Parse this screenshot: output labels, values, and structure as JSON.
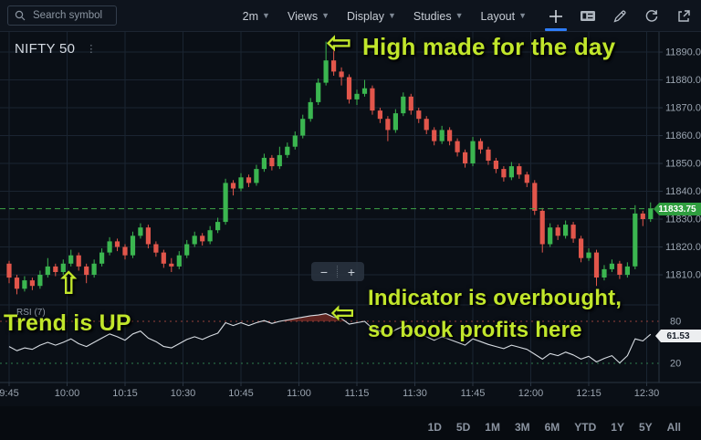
{
  "toolbar": {
    "search_placeholder": "Search symbol",
    "interval": "2m",
    "menus": [
      "Views",
      "Display",
      "Studies",
      "Layout"
    ]
  },
  "chart": {
    "symbol": "NIFTY 50",
    "more_glyph": "⋮",
    "current_price": "11833.75"
  },
  "rsi": {
    "label": "RSI (7)",
    "value": "61.53"
  },
  "annotations": {
    "high": "High made for the day",
    "trend": "Trend is UP",
    "overbought_line1": "Indicator is overbought,",
    "overbought_line2": "so book profits here",
    "arrow_left": "⇦",
    "arrow_up": "⇧"
  },
  "zoom_control": {
    "minus": "−",
    "plus": "+"
  },
  "ranges": [
    "1D",
    "5D",
    "1M",
    "3M",
    "6M",
    "YTD",
    "1Y",
    "5Y",
    "All"
  ],
  "chart_data": {
    "type": "candlestick",
    "symbol": "NIFTY 50",
    "interval": "2m",
    "session_start": "9:45",
    "session_end": "12:33",
    "current_price": 11833.75,
    "day_high": 11893.75,
    "day_low": 11803,
    "rsi_period": 7,
    "rsi_current": 61.53,
    "price_ticks": [
      11890,
      11880,
      11870,
      11860,
      11850,
      11840,
      11830,
      11820,
      11810
    ],
    "time_ticks": [
      "9:45",
      "10:00",
      "10:15",
      "10:30",
      "10:45",
      "11:00",
      "11:15",
      "11:30",
      "11:45",
      "12:00",
      "12:15",
      "12:30"
    ],
    "rsi_bands": [
      80,
      20
    ],
    "candles": [
      [
        11814,
        11815,
        11807,
        11809
      ],
      [
        11809,
        11810,
        11803,
        11805
      ],
      [
        11805,
        11809.5,
        11804,
        11808
      ],
      [
        11808,
        11809,
        11804.5,
        11806
      ],
      [
        11806,
        11811.5,
        11805,
        11810
      ],
      [
        11810,
        11816,
        11809,
        11813
      ],
      [
        11813,
        11814,
        11809.5,
        11811
      ],
      [
        11811,
        11815.5,
        11810,
        11814
      ],
      [
        11814,
        11819,
        11813,
        11817
      ],
      [
        11817,
        11818,
        11811.5,
        11813
      ],
      [
        11813,
        11814,
        11807,
        11810
      ],
      [
        11810,
        11815.5,
        11809,
        11814
      ],
      [
        11814,
        11819.5,
        11813,
        11818
      ],
      [
        11818,
        11823.5,
        11817,
        11822
      ],
      [
        11822,
        11823,
        11818.5,
        11820
      ],
      [
        11820,
        11821,
        11815.5,
        11817
      ],
      [
        11817,
        11825.5,
        11816,
        11824
      ],
      [
        11824,
        11828.5,
        11823,
        11827
      ],
      [
        11827,
        11828,
        11819.5,
        11821
      ],
      [
        11821,
        11822,
        11816.5,
        11818
      ],
      [
        11818,
        11819,
        11812.5,
        11814
      ],
      [
        11814,
        11816,
        11811,
        11813
      ],
      [
        11813,
        11818.5,
        11812,
        11817
      ],
      [
        11817,
        11822.5,
        11816,
        11821
      ],
      [
        11821,
        11825.5,
        11820,
        11824
      ],
      [
        11824,
        11825,
        11820.5,
        11822
      ],
      [
        11822,
        11827.5,
        11821,
        11826
      ],
      [
        11826,
        11830.5,
        11825,
        11829
      ],
      [
        11829,
        11844.5,
        11828,
        11843
      ],
      [
        11843,
        11844,
        11838.5,
        11841
      ],
      [
        11841,
        11846.5,
        11840,
        11845
      ],
      [
        11845,
        11846,
        11841.5,
        11843
      ],
      [
        11843,
        11849.5,
        11842,
        11848
      ],
      [
        11848,
        11853.5,
        11847,
        11852
      ],
      [
        11852,
        11853,
        11847.5,
        11849
      ],
      [
        11849,
        11856,
        11848,
        11853
      ],
      [
        11853,
        11857.5,
        11852,
        11856
      ],
      [
        11856,
        11861.5,
        11855,
        11860
      ],
      [
        11860,
        11867.5,
        11859,
        11866
      ],
      [
        11866,
        11873.5,
        11865,
        11872
      ],
      [
        11872,
        11880.5,
        11871,
        11879
      ],
      [
        11879,
        11893.75,
        11878,
        11887
      ],
      [
        11887,
        11891,
        11881.5,
        11883
      ],
      [
        11883,
        11884.5,
        11878,
        11881
      ],
      [
        11881,
        11882,
        11871.5,
        11873
      ],
      [
        11873,
        11876.5,
        11871,
        11875
      ],
      [
        11875,
        11880,
        11874,
        11877
      ],
      [
        11877,
        11878,
        11867.5,
        11869
      ],
      [
        11869,
        11870,
        11864.5,
        11866
      ],
      [
        11866,
        11867,
        11858,
        11862
      ],
      [
        11862,
        11869.5,
        11861,
        11868
      ],
      [
        11868,
        11875.5,
        11867,
        11874
      ],
      [
        11874,
        11875,
        11867.5,
        11869
      ],
      [
        11869,
        11870,
        11864.5,
        11866
      ],
      [
        11866,
        11867,
        11860.5,
        11862
      ],
      [
        11862,
        11863,
        11856.5,
        11858
      ],
      [
        11858,
        11863.5,
        11857,
        11862
      ],
      [
        11862,
        11863,
        11856.5,
        11858
      ],
      [
        11858,
        11859,
        11852.5,
        11854
      ],
      [
        11854,
        11855,
        11848.5,
        11850
      ],
      [
        11850,
        11859.5,
        11849,
        11858
      ],
      [
        11858,
        11859,
        11853.5,
        11855
      ],
      [
        11855,
        11856,
        11849.5,
        11851
      ],
      [
        11851,
        11852,
        11846.5,
        11848
      ],
      [
        11848,
        11849,
        11843.5,
        11845
      ],
      [
        11845,
        11850.5,
        11844,
        11849
      ],
      [
        11849,
        11850,
        11844.5,
        11846
      ],
      [
        11846,
        11847,
        11841.5,
        11843
      ],
      [
        11843,
        11844,
        11831.5,
        11833
      ],
      [
        11833,
        11834,
        11818,
        11821
      ],
      [
        11821,
        11828.5,
        11820,
        11827
      ],
      [
        11827,
        11828,
        11822.5,
        11824
      ],
      [
        11824,
        11829.5,
        11823,
        11828
      ],
      [
        11828,
        11829,
        11821.5,
        11823
      ],
      [
        11823,
        11824,
        11814.5,
        11816
      ],
      [
        11816,
        11819.5,
        11815,
        11818
      ],
      [
        11818,
        11819,
        11806,
        11809
      ],
      [
        11809,
        11813.5,
        11808,
        11812
      ],
      [
        11812,
        11815.5,
        11811,
        11814
      ],
      [
        11814,
        11815,
        11808.5,
        11810
      ],
      [
        11810,
        11814.5,
        11809,
        11813
      ],
      [
        11813,
        11835,
        11812,
        11832
      ],
      [
        11832,
        11833,
        11827.5,
        11830
      ],
      [
        11830,
        11836,
        11829,
        11833.75
      ]
    ],
    "rsi_values": [
      44,
      38,
      42,
      40,
      46,
      50,
      46,
      50,
      55,
      48,
      44,
      50,
      56,
      62,
      58,
      53,
      62,
      66,
      56,
      51,
      44,
      42,
      48,
      54,
      58,
      54,
      59,
      63,
      78,
      74,
      78,
      74,
      78,
      81,
      77,
      80,
      82,
      84,
      86,
      88,
      89,
      91,
      86,
      84,
      76,
      78,
      80,
      70,
      66,
      60,
      68,
      73,
      67,
      63,
      58,
      53,
      58,
      54,
      50,
      46,
      55,
      51,
      47,
      44,
      41,
      46,
      43,
      40,
      33,
      26,
      34,
      31,
      36,
      32,
      26,
      30,
      22,
      27,
      31,
      20.5,
      31,
      55,
      52,
      61.53
    ],
    "colors": {
      "up": "#3bb650",
      "down": "#e2564b",
      "price_line": "#3fa546",
      "rsi_line": "#d7dce2",
      "rsi_fill": "#5e2420",
      "rsi_upper_band": "#97403c",
      "rsi_lower_band": "#2e7d4f",
      "grid": "#1a2431",
      "axis": "#2a3542",
      "axis_text": "#9aa4b0"
    }
  }
}
